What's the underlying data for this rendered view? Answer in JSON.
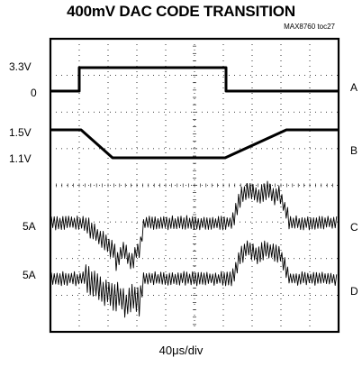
{
  "chart_data": {
    "type": "line",
    "title": "400mV DAC CODE TRANSITION",
    "subtitle": "MAX8760 toc27",
    "xlabel": "40μs/div",
    "grid": true,
    "divisions": {
      "x": 10,
      "y": 8
    },
    "left_labels": [
      "3.3V",
      "0",
      "1.5V",
      "1.1V",
      "5A",
      "5A"
    ],
    "channels": [
      {
        "name": "A"
      },
      {
        "name": "B"
      },
      {
        "name": "C"
      },
      {
        "name": "D"
      }
    ]
  }
}
